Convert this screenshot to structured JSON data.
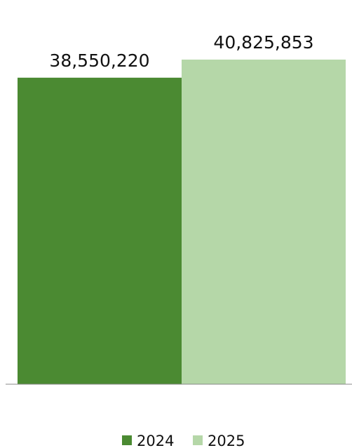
{
  "chart_data": {
    "type": "bar",
    "series": [
      {
        "name": "2024",
        "color": "#4b8a32",
        "values": [
          38550220
        ],
        "value_labels": [
          "38,550,220"
        ]
      },
      {
        "name": "2025",
        "color": "#b5d7a8",
        "values": [
          40825853
        ],
        "value_labels": [
          "40,825,853"
        ]
      }
    ]
  }
}
